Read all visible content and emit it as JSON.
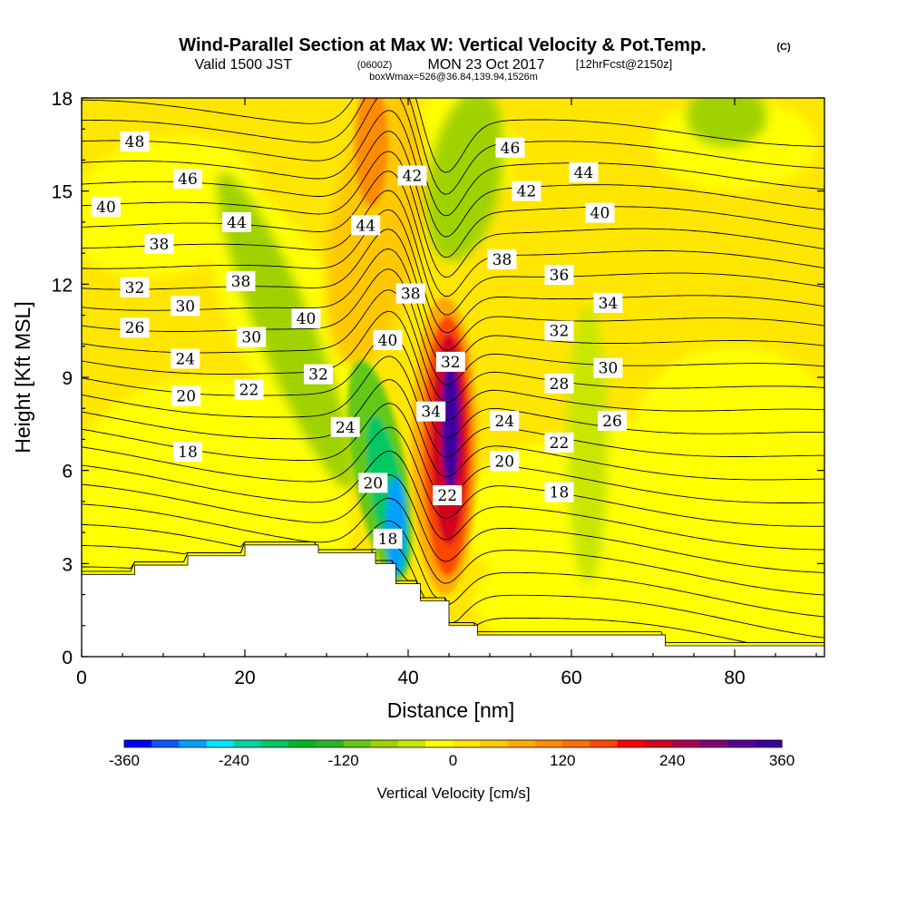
{
  "title": {
    "main": "Wind-Parallel Section at Max W: Vertical Velocity & Pot.Temp.",
    "copyright": "(C)",
    "valid_prefix": "Valid 1500 JST",
    "valid_utc": "(0600Z)",
    "valid_date": "MON 23 Oct 2017",
    "forecast": "[12hrFcst@2150z]",
    "boxinfo": "boxWmax=526@36.84,139.94,1526m"
  },
  "chart_data": {
    "type": "contour",
    "title": "Wind-Parallel Section at Max W: Vertical Velocity & Pot.Temp.",
    "xlabel": "Distance [nm]",
    "ylabel": "Height [Kft MSL]",
    "xlim": [
      0,
      91
    ],
    "ylim": [
      0,
      18
    ],
    "x_ticks": [
      0,
      20,
      40,
      60,
      80
    ],
    "y_ticks": [
      0,
      3,
      6,
      9,
      12,
      15,
      18
    ],
    "colorbar": {
      "label": "Vertical Velocity [cm/s]",
      "ticks": [
        -360,
        -240,
        -120,
        0,
        120,
        240,
        360
      ],
      "bounds": [
        -360,
        -330,
        -300,
        -270,
        -240,
        -210,
        -180,
        -150,
        -120,
        -90,
        -60,
        -30,
        0,
        30,
        60,
        90,
        120,
        150,
        180,
        210,
        240,
        270,
        300,
        330,
        360
      ],
      "colors": [
        "#0000ff",
        "#0a5aff",
        "#00a0ff",
        "#00e6ff",
        "#00d2a0",
        "#00c864",
        "#00b428",
        "#28b428",
        "#64c814",
        "#a0d200",
        "#c8e600",
        "#ffff00",
        "#ffe600",
        "#ffc800",
        "#ffaa00",
        "#ff8c00",
        "#ff6e00",
        "#ff4600",
        "#ff0000",
        "#d2001e",
        "#aa0050",
        "#820078",
        "#5a0096",
        "#3c00a0"
      ]
    },
    "terrain_kft": [
      [
        0,
        2.65
      ],
      [
        1.5,
        2.65
      ],
      [
        6.5,
        2.65
      ],
      [
        6.5,
        2.95
      ],
      [
        13,
        2.95
      ],
      [
        13,
        3.25
      ],
      [
        20,
        3.25
      ],
      [
        20,
        3.6
      ],
      [
        29,
        3.6
      ],
      [
        29,
        3.35
      ],
      [
        36,
        3.35
      ],
      [
        36,
        3.0
      ],
      [
        38.5,
        3.0
      ],
      [
        38.5,
        2.35
      ],
      [
        41.5,
        2.35
      ],
      [
        41.5,
        1.8
      ],
      [
        45,
        1.8
      ],
      [
        45,
        1.0
      ],
      [
        48.5,
        1.0
      ],
      [
        48.5,
        0.7
      ],
      [
        71.5,
        0.7
      ],
      [
        71.5,
        0.35
      ],
      [
        91,
        0.35
      ]
    ],
    "updraft_max_label": "boxWmax=526@36.84,139.94,1526m",
    "potential_temperature_labels": [
      {
        "label": "48",
        "x": 6.5,
        "y": 16.6
      },
      {
        "label": "46",
        "x": 13,
        "y": 15.4
      },
      {
        "label": "40",
        "x": 3,
        "y": 14.5
      },
      {
        "label": "44",
        "x": 19,
        "y": 14.0
      },
      {
        "label": "38",
        "x": 9.5,
        "y": 13.3
      },
      {
        "label": "38",
        "x": 19.5,
        "y": 12.1
      },
      {
        "label": "32",
        "x": 6.5,
        "y": 11.9
      },
      {
        "label": "40",
        "x": 27.5,
        "y": 10.9
      },
      {
        "label": "30",
        "x": 12.7,
        "y": 11.3
      },
      {
        "label": "30",
        "x": 20.8,
        "y": 10.3
      },
      {
        "label": "26",
        "x": 6.5,
        "y": 10.6
      },
      {
        "label": "24",
        "x": 12.7,
        "y": 9.6
      },
      {
        "label": "32",
        "x": 29,
        "y": 9.1
      },
      {
        "label": "22",
        "x": 20.5,
        "y": 8.6
      },
      {
        "label": "20",
        "x": 12.8,
        "y": 8.4
      },
      {
        "label": "24",
        "x": 32.3,
        "y": 7.4
      },
      {
        "label": "18",
        "x": 13,
        "y": 6.6
      },
      {
        "label": "20",
        "x": 35.7,
        "y": 5.6
      },
      {
        "label": "18",
        "x": 37.5,
        "y": 3.8
      },
      {
        "label": "44",
        "x": 34.8,
        "y": 13.9
      },
      {
        "label": "42",
        "x": 40.5,
        "y": 15.5
      },
      {
        "label": "38",
        "x": 40.3,
        "y": 11.7
      },
      {
        "label": "40",
        "x": 37.5,
        "y": 10.2
      },
      {
        "label": "34",
        "x": 42.8,
        "y": 7.9
      },
      {
        "label": "32",
        "x": 45.2,
        "y": 9.5
      },
      {
        "label": "22",
        "x": 44.8,
        "y": 5.2
      },
      {
        "label": "46",
        "x": 52.5,
        "y": 16.4
      },
      {
        "label": "44",
        "x": 61.5,
        "y": 15.6
      },
      {
        "label": "42",
        "x": 54.5,
        "y": 15.0
      },
      {
        "label": "40",
        "x": 63.5,
        "y": 14.3
      },
      {
        "label": "38",
        "x": 51.5,
        "y": 12.8
      },
      {
        "label": "36",
        "x": 58.5,
        "y": 12.3
      },
      {
        "label": "34",
        "x": 64.5,
        "y": 11.4
      },
      {
        "label": "32",
        "x": 58.5,
        "y": 10.5
      },
      {
        "label": "30",
        "x": 64.5,
        "y": 9.3
      },
      {
        "label": "28",
        "x": 58.5,
        "y": 8.8
      },
      {
        "label": "26",
        "x": 65,
        "y": 7.6
      },
      {
        "label": "24",
        "x": 51.8,
        "y": 7.6
      },
      {
        "label": "22",
        "x": 58.5,
        "y": 6.9
      },
      {
        "label": "20",
        "x": 51.8,
        "y": 6.3
      },
      {
        "label": "18",
        "x": 58.5,
        "y": 5.3
      }
    ]
  }
}
